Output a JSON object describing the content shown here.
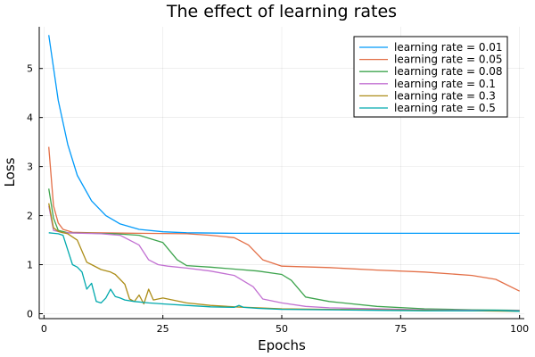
{
  "chart_data": {
    "type": "line",
    "title": "The effect of learning rates",
    "xlabel": "Epochs",
    "ylabel": "Loss",
    "xlim": [
      -1,
      101
    ],
    "ylim": [
      -0.1,
      5.85
    ],
    "xticks": [
      0,
      25,
      50,
      75,
      100
    ],
    "yticks": [
      0,
      1,
      2,
      3,
      4,
      5
    ],
    "grid": true,
    "legend_position": "top-right",
    "series": [
      {
        "name": "learning rate = 0.01",
        "color": "#009AFA",
        "x": [
          1,
          3,
          5,
          7,
          10,
          13,
          16,
          20,
          25,
          30,
          40,
          50,
          75,
          100
        ],
        "y": [
          5.68,
          4.35,
          3.45,
          2.82,
          2.3,
          2.0,
          1.83,
          1.72,
          1.67,
          1.65,
          1.64,
          1.64,
          1.64,
          1.64
        ]
      },
      {
        "name": "learning rate = 0.05",
        "color": "#E36F47",
        "x": [
          1,
          2,
          3,
          4,
          6,
          10,
          20,
          30,
          35,
          40,
          43,
          46,
          50,
          60,
          70,
          80,
          90,
          95,
          100
        ],
        "y": [
          3.4,
          2.2,
          1.85,
          1.72,
          1.66,
          1.65,
          1.64,
          1.63,
          1.6,
          1.55,
          1.4,
          1.1,
          0.97,
          0.94,
          0.89,
          0.85,
          0.78,
          0.7,
          0.46
        ]
      },
      {
        "name": "learning rate = 0.08",
        "color": "#3EA44E",
        "x": [
          1,
          2,
          3,
          5,
          10,
          15,
          20,
          25,
          28,
          30,
          35,
          40,
          45,
          50,
          52,
          55,
          60,
          70,
          80,
          90,
          100
        ],
        "y": [
          2.55,
          1.95,
          1.7,
          1.65,
          1.64,
          1.63,
          1.6,
          1.45,
          1.1,
          0.98,
          0.95,
          0.91,
          0.87,
          0.8,
          0.68,
          0.34,
          0.25,
          0.15,
          0.1,
          0.08,
          0.07
        ]
      },
      {
        "name": "learning rate = 0.1",
        "color": "#C271D2",
        "x": [
          1,
          2,
          4,
          8,
          12,
          16,
          20,
          22,
          24,
          26,
          30,
          35,
          40,
          44,
          46,
          50,
          55,
          60,
          70,
          80,
          90,
          100
        ],
        "y": [
          2.2,
          1.7,
          1.65,
          1.64,
          1.63,
          1.6,
          1.4,
          1.1,
          1.0,
          0.97,
          0.93,
          0.87,
          0.78,
          0.55,
          0.3,
          0.22,
          0.15,
          0.12,
          0.1,
          0.08,
          0.07,
          0.06
        ]
      },
      {
        "name": "learning rate = 0.3",
        "color": "#AC8D18",
        "x": [
          1,
          2,
          3,
          4,
          5,
          7,
          9,
          10,
          12,
          14,
          15,
          17,
          18,
          19,
          20,
          21,
          22,
          23,
          25,
          30,
          35,
          40,
          50,
          60,
          70,
          80,
          90,
          100
        ],
        "y": [
          2.25,
          1.75,
          1.68,
          1.65,
          1.63,
          1.5,
          1.05,
          1.0,
          0.9,
          0.85,
          0.8,
          0.6,
          0.3,
          0.25,
          0.38,
          0.2,
          0.5,
          0.28,
          0.32,
          0.22,
          0.17,
          0.14,
          0.1,
          0.09,
          0.08,
          0.07,
          0.06,
          0.05
        ]
      },
      {
        "name": "learning rate = 0.5",
        "color": "#00A9AD",
        "x": [
          1,
          2,
          3,
          4,
          5,
          6,
          7,
          8,
          9,
          10,
          11,
          12,
          13,
          14,
          15,
          16,
          17,
          19,
          20,
          21,
          22,
          25,
          30,
          35,
          40,
          41,
          42,
          45,
          50,
          60,
          70,
          80,
          90,
          95,
          100
        ],
        "y": [
          1.65,
          1.64,
          1.63,
          1.6,
          1.3,
          1.0,
          0.95,
          0.85,
          0.5,
          0.62,
          0.25,
          0.22,
          0.32,
          0.5,
          0.35,
          0.32,
          0.28,
          0.25,
          0.24,
          0.23,
          0.22,
          0.2,
          0.17,
          0.14,
          0.13,
          0.17,
          0.13,
          0.11,
          0.09,
          0.08,
          0.07,
          0.06,
          0.06,
          0.07,
          0.05
        ]
      }
    ]
  }
}
